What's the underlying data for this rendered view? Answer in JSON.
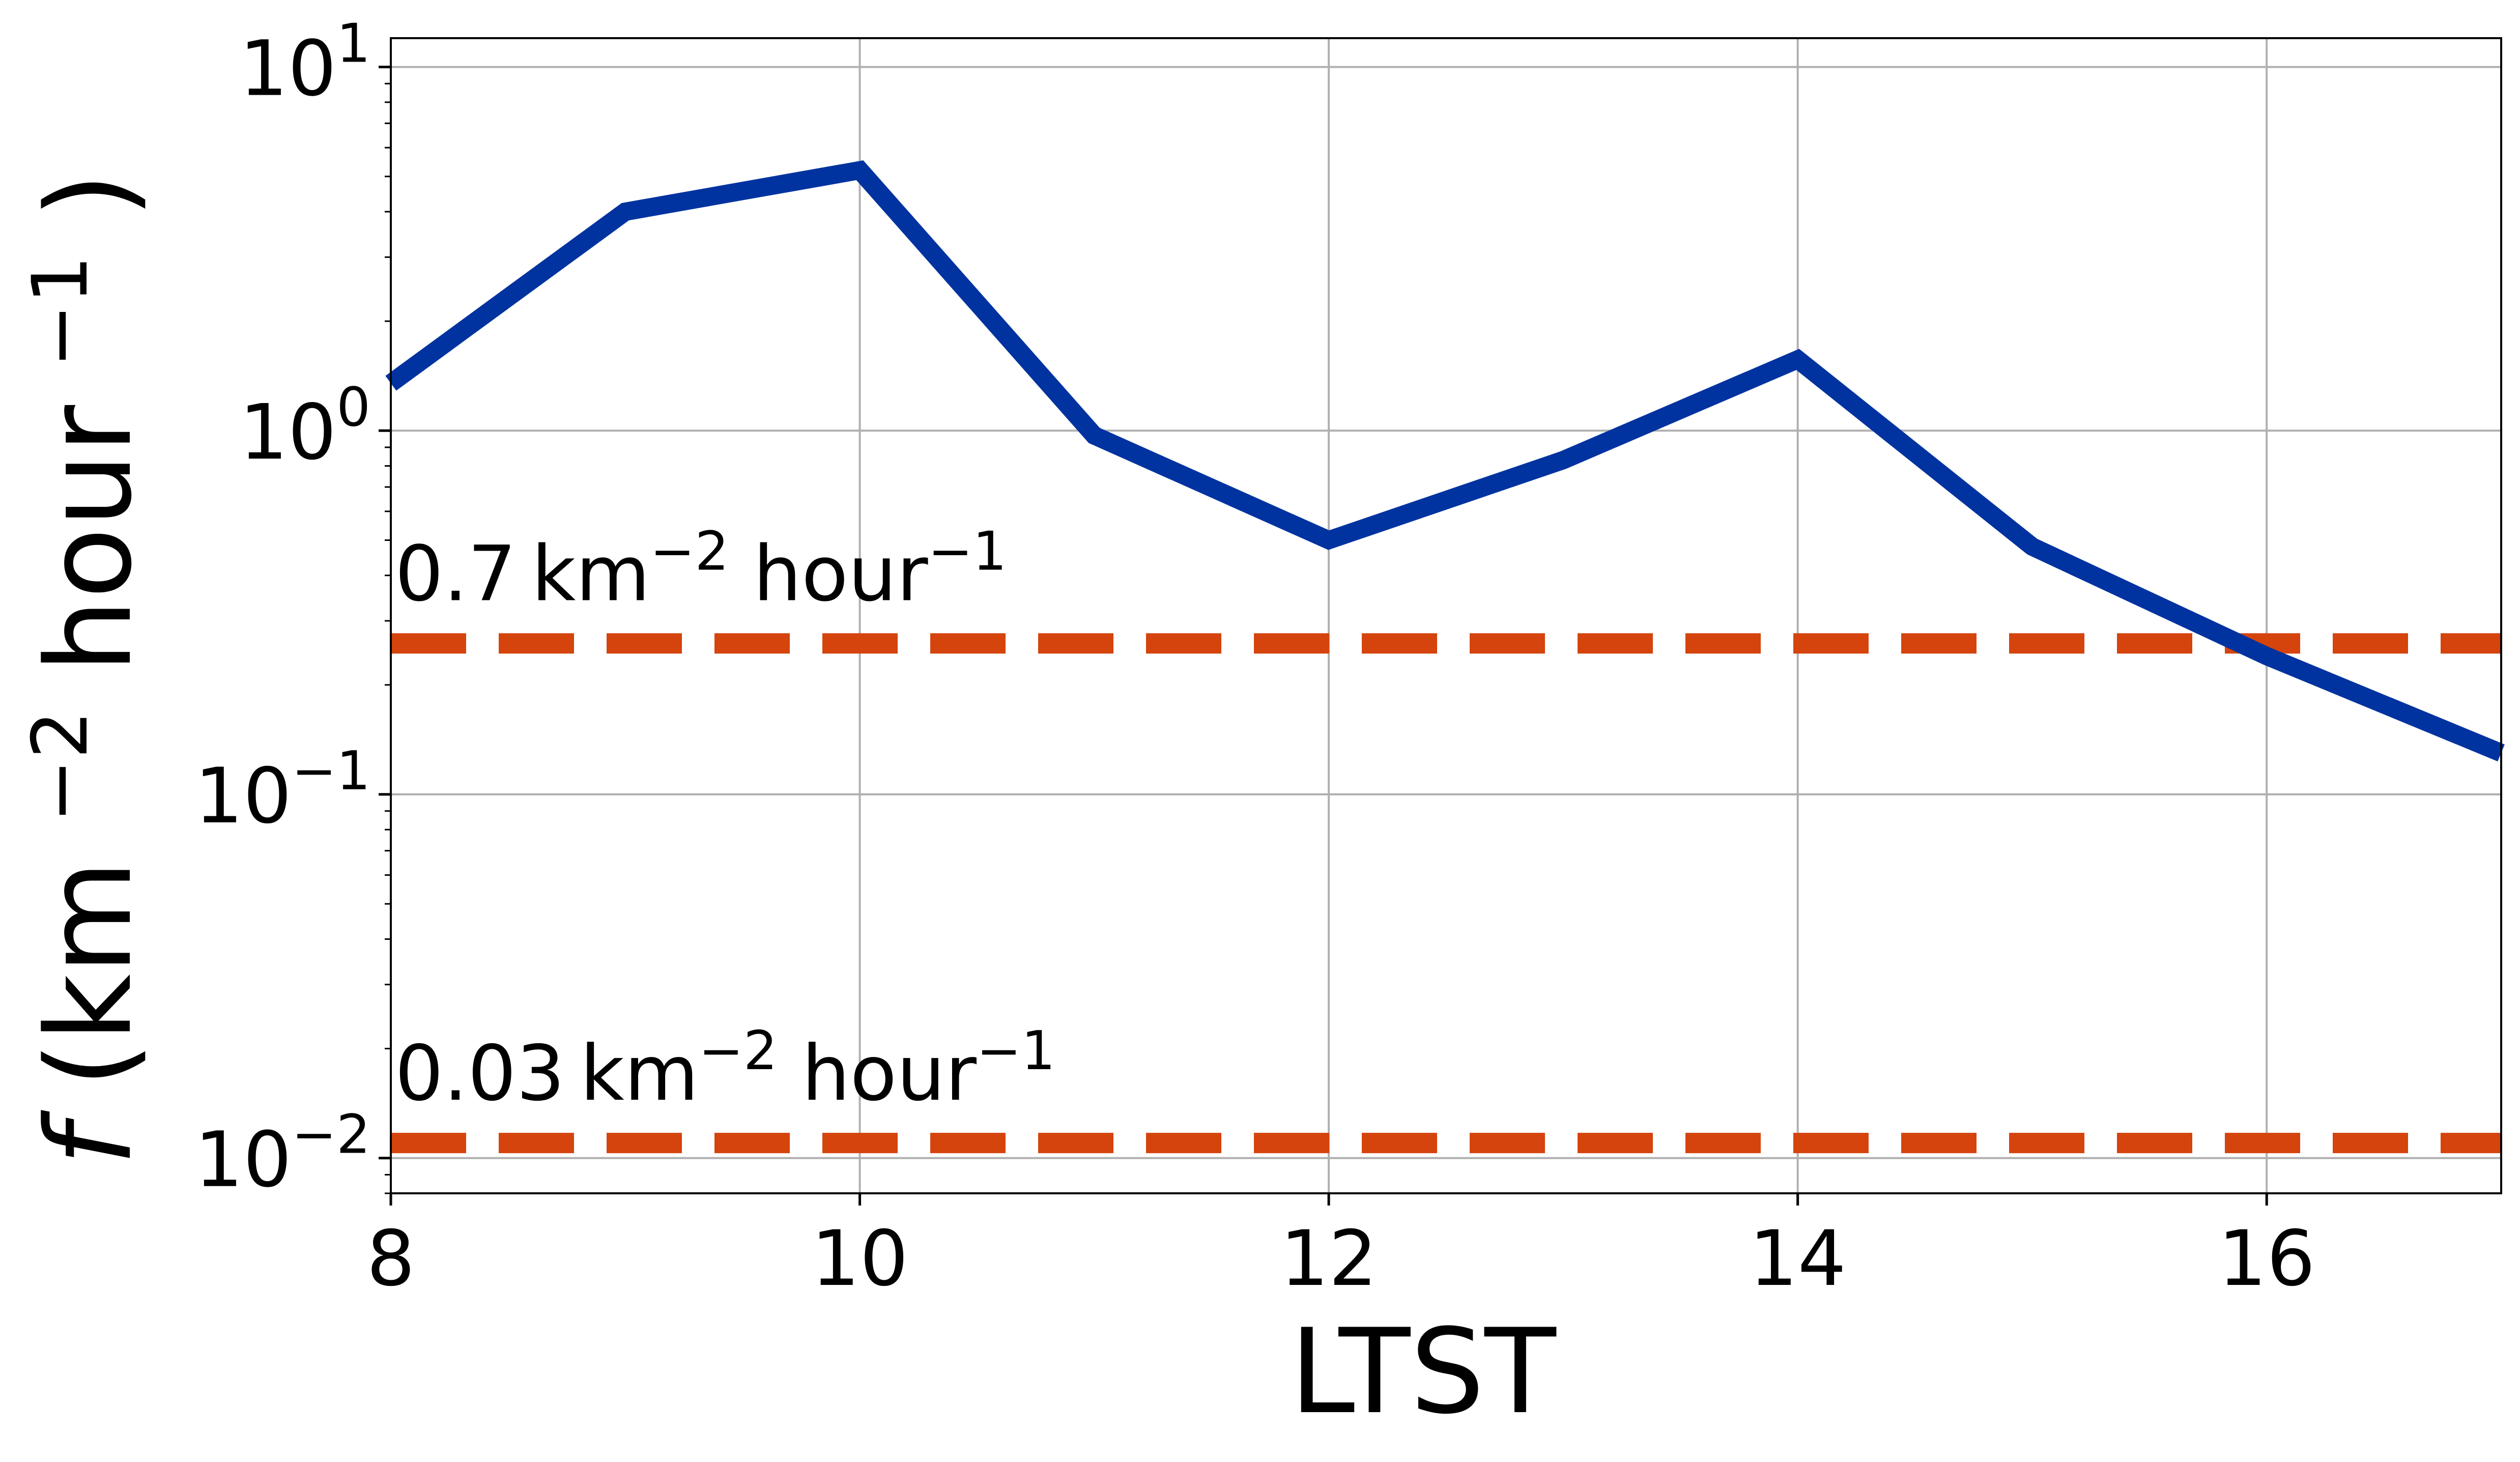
{
  "chart_data": {
    "type": "line",
    "xlabel": "LTST",
    "ylabel": {
      "symbol": "f",
      "open": "(km",
      "exp1": "−2",
      "mid": " hour",
      "exp2": "−1",
      "close": ")"
    },
    "xlim": [
      8,
      17
    ],
    "ylim": [
      0.008,
      12
    ],
    "yscale": "log",
    "grid": true,
    "x_ticks": [
      {
        "value": 8,
        "label": "8"
      },
      {
        "value": 10,
        "label": "10"
      },
      {
        "value": 12,
        "label": "12"
      },
      {
        "value": 14,
        "label": "14"
      },
      {
        "value": 16,
        "label": "16"
      }
    ],
    "y_ticks": [
      {
        "value": 10,
        "base": "10",
        "exp": "1"
      },
      {
        "value": 1,
        "base": "10",
        "exp": "0"
      },
      {
        "value": 0.1,
        "base": "10",
        "exp": "−1"
      },
      {
        "value": 0.01,
        "base": "10",
        "exp": "−2"
      }
    ],
    "series": [
      {
        "color": "#0033a0",
        "x": [
          8,
          9,
          10,
          11,
          12,
          13,
          14,
          15,
          16,
          17
        ],
        "y": [
          1.35,
          4.0,
          5.2,
          0.97,
          0.5,
          0.83,
          1.57,
          0.48,
          0.24,
          0.13
        ]
      }
    ],
    "reference_lines": [
      {
        "y": 0.26,
        "color": "#d4440c",
        "style": "dashed",
        "label": {
          "value": "0.7",
          "unit": "km",
          "exp1": "−2",
          "mid": " hour",
          "exp2": "−1"
        }
      },
      {
        "y": 0.011,
        "color": "#d4440c",
        "style": "dashed",
        "label": {
          "value": "0.03",
          "unit": "km",
          "exp1": "−2",
          "mid": " hour",
          "exp2": "−1"
        }
      }
    ]
  }
}
